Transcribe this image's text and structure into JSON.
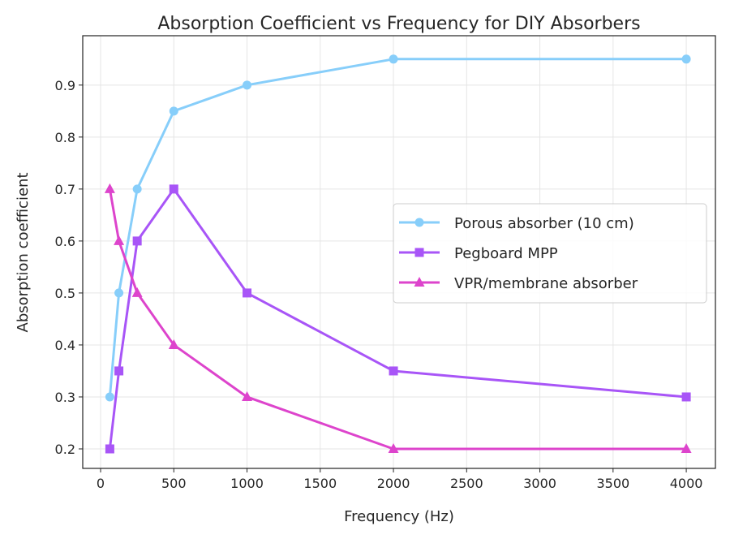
{
  "chart_data": {
    "type": "line",
    "title": "Absorption Coefficient vs Frequency for DIY Absorbers",
    "xlabel": "Frequency (Hz)",
    "ylabel": "Absorption coefficient",
    "x": [
      63,
      125,
      250,
      500,
      1000,
      2000,
      4000
    ],
    "xlim": [
      -122,
      4199
    ],
    "ylim": [
      0.1625,
      0.995
    ],
    "xticks": [
      0,
      500,
      1000,
      1500,
      2000,
      2500,
      3000,
      3500,
      4000
    ],
    "yticks": [
      0.2,
      0.3,
      0.4,
      0.5,
      0.6,
      0.7,
      0.8,
      0.9
    ],
    "grid": true,
    "legend_position": "center-right",
    "series": [
      {
        "name": "Porous absorber (10 cm)",
        "values": [
          0.3,
          0.5,
          0.7,
          0.85,
          0.9,
          0.95,
          0.95
        ],
        "color": "#87CEFA",
        "marker": "circle"
      },
      {
        "name": "Pegboard MPP",
        "values": [
          0.2,
          0.35,
          0.6,
          0.7,
          0.5,
          0.35,
          0.3
        ],
        "color": "#A855F7",
        "marker": "square"
      },
      {
        "name": "VPR/membrane absorber",
        "values": [
          0.7,
          0.6,
          0.5,
          0.4,
          0.3,
          0.2,
          0.2
        ],
        "color": "#DD44CC",
        "marker": "triangle"
      }
    ]
  }
}
